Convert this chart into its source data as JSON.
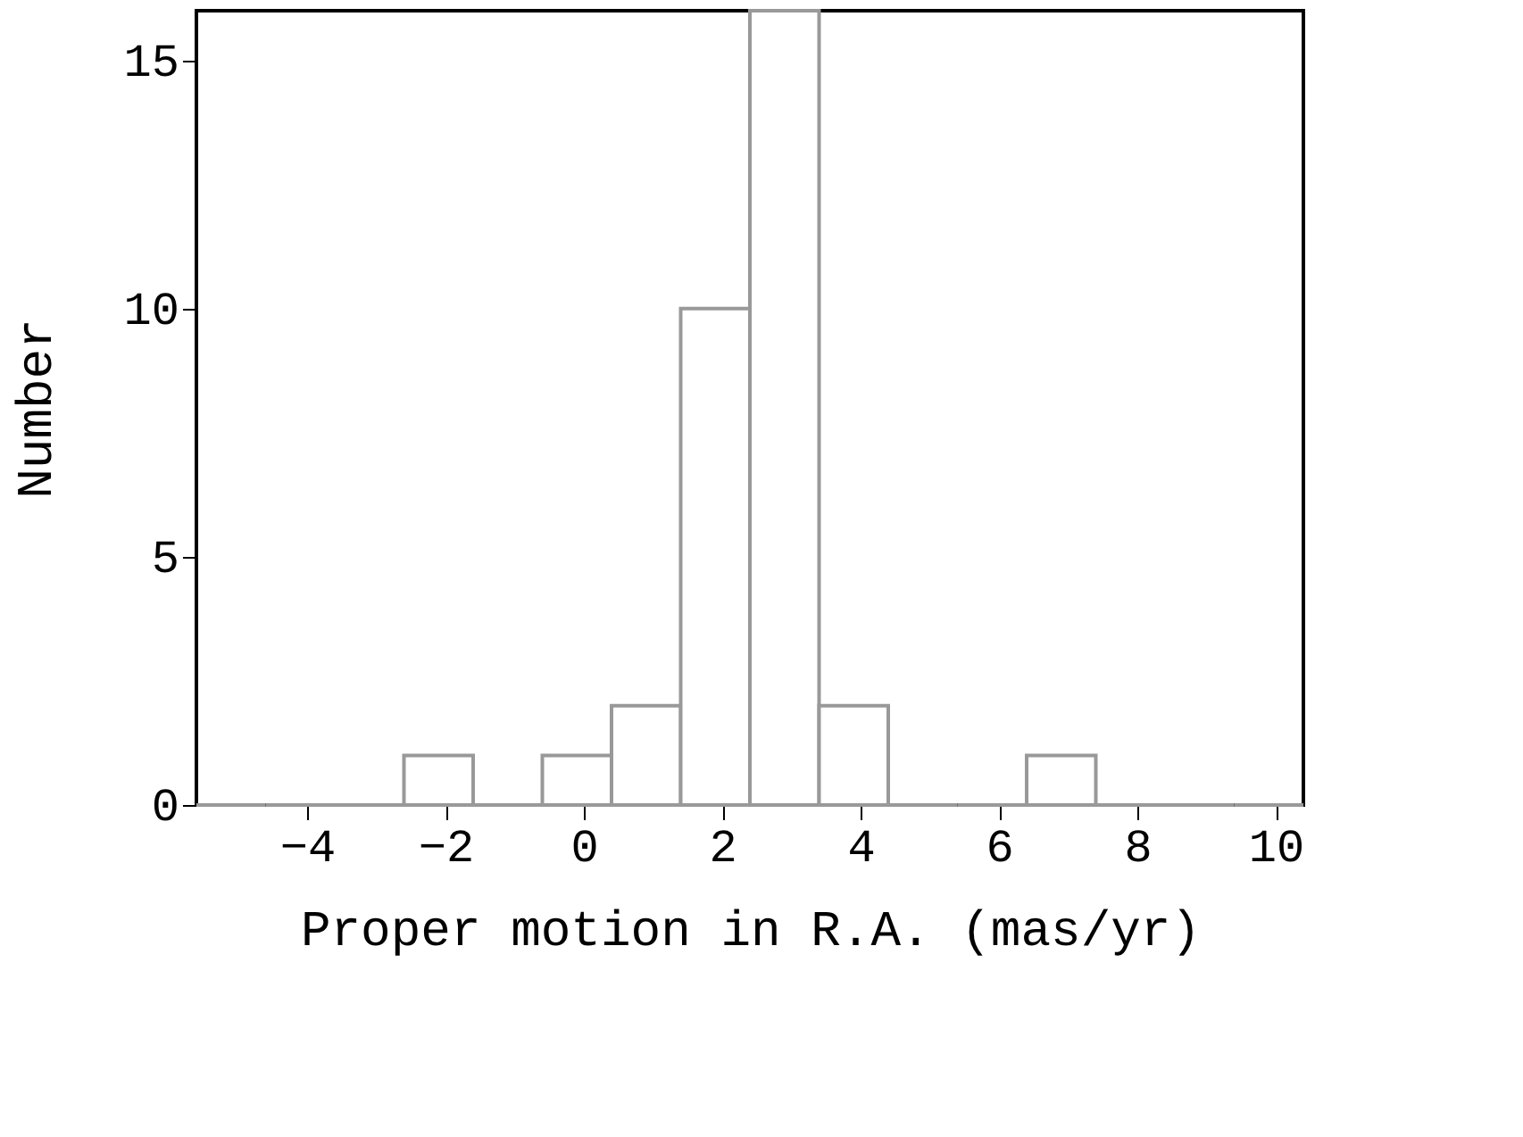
{
  "chart_data": {
    "type": "histogram",
    "xlabel": "Proper motion in R.A. (mas/yr)",
    "ylabel": "Number",
    "bins": [
      -5.6,
      -4.6,
      -3.6,
      -2.6,
      -1.6,
      -0.6,
      0.4,
      1.4,
      2.4,
      3.4,
      4.4,
      5.4,
      6.4,
      7.4,
      8.4,
      9.4,
      10.4
    ],
    "values": [
      0,
      0,
      0,
      1,
      0,
      1,
      2,
      10,
      16,
      2,
      0,
      0,
      1,
      0,
      0,
      0
    ],
    "color": "#999999",
    "xlim": [
      -5.6,
      10.4
    ],
    "xticks": [
      -4,
      -2,
      0,
      2,
      4,
      6,
      8,
      10
    ],
    "ylim": [
      0,
      16
    ],
    "yticks": [
      0,
      5,
      10,
      15
    ],
    "grid": false
  }
}
